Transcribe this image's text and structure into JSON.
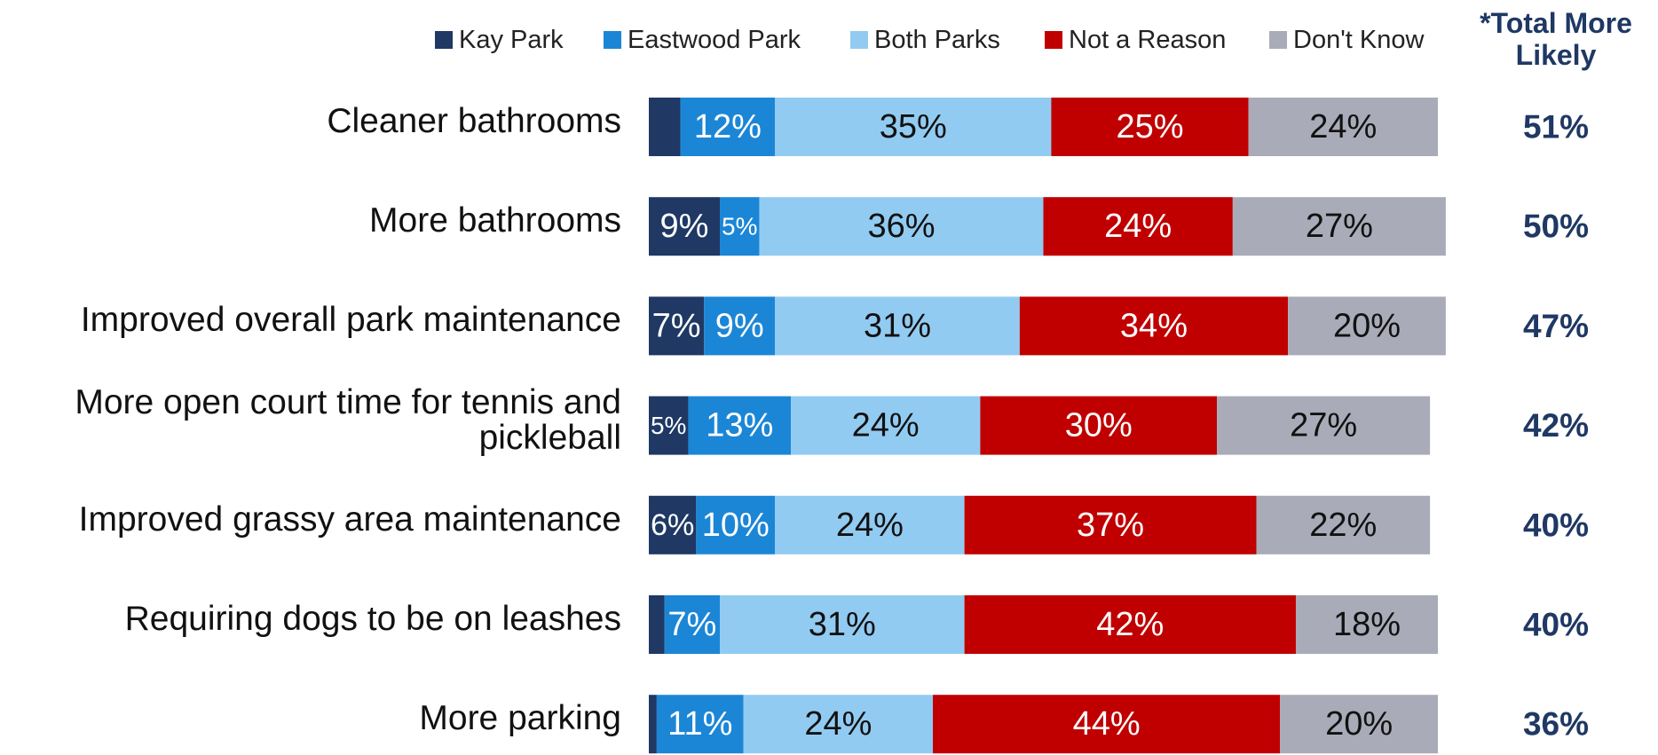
{
  "chart_data": {
    "type": "stacked-bar-horizontal",
    "categories": [
      "Cleaner bathrooms",
      "More bathrooms",
      "Improved overall park maintenance",
      "More open court time for tennis and pickleball",
      "Improved grassy area maintenance",
      "Requiring dogs to be on leashes",
      "More parking"
    ],
    "series": [
      {
        "name": "Kay Park",
        "color": "#1f3864",
        "values": [
          4,
          9,
          7,
          5,
          6,
          2,
          1
        ],
        "value_labels": [
          null,
          "9%",
          "7%",
          "5%",
          "6%",
          null,
          null
        ]
      },
      {
        "name": "Eastwood Park",
        "color": "#1c86d6",
        "values": [
          12,
          5,
          9,
          13,
          10,
          7,
          11
        ],
        "value_labels": [
          "12%",
          "5%",
          "9%",
          "13%",
          "10%",
          "7%",
          "11%"
        ]
      },
      {
        "name": "Both Parks",
        "color": "#92cbf1",
        "values": [
          35,
          36,
          31,
          24,
          24,
          31,
          24
        ],
        "value_labels": [
          "35%",
          "36%",
          "31%",
          "24%",
          "24%",
          "31%",
          "24%"
        ]
      },
      {
        "name": "Not a Reason",
        "color": "#c00000",
        "values": [
          25,
          24,
          34,
          30,
          37,
          42,
          44
        ],
        "value_labels": [
          "25%",
          "24%",
          "34%",
          "30%",
          "37%",
          "42%",
          "44%"
        ]
      },
      {
        "name": "Don't Know",
        "color": "#a9abb8",
        "values": [
          24,
          27,
          20,
          27,
          22,
          18,
          20
        ],
        "value_labels": [
          "24%",
          "27%",
          "20%",
          "27%",
          "22%",
          "18%",
          "20%"
        ]
      }
    ],
    "totals": {
      "name": "*Total More Likely",
      "color": "#1f3864",
      "values": [
        51,
        50,
        47,
        42,
        40,
        40,
        36
      ],
      "value_labels": [
        "51%",
        "50%",
        "47%",
        "42%",
        "40%",
        "40%",
        "36%"
      ]
    },
    "xlim": [
      0,
      100
    ],
    "legend": "top"
  }
}
